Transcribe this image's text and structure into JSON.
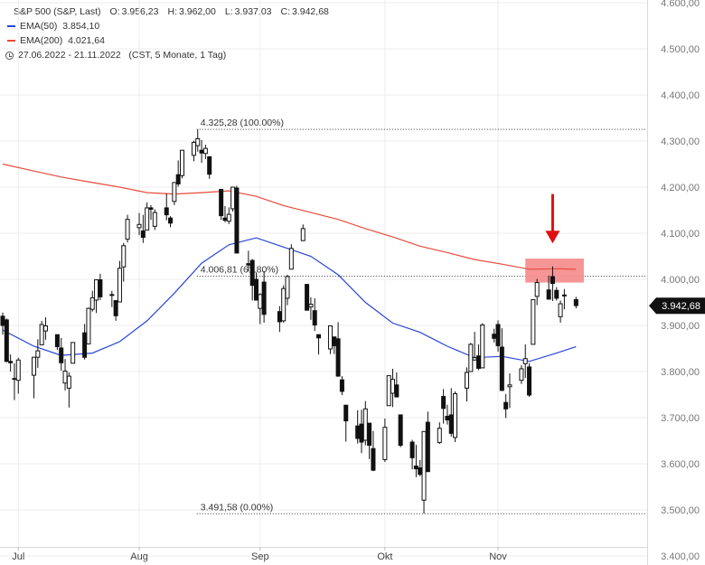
{
  "legend": {
    "instrument": "S&P 500 (S&P, Last)",
    "ohlc": {
      "o_label": "O:",
      "o": "3.956,23",
      "h_label": "H:",
      "h": "3.962,00",
      "l_label": "L:",
      "l": "3.937,03",
      "c_label": "C:",
      "c": "3.942,68"
    },
    "ema50": {
      "label": "EMA(50)",
      "value": "3.854,10",
      "color": "#2846d8"
    },
    "ema200": {
      "label": "EMA(200)",
      "value": "4.021,64",
      "color": "#e84b3c"
    },
    "period": "27.06.2022 - 21.11.2022",
    "period_note": "(CST, 5 Monate, 1 Tag)"
  },
  "chart_data": {
    "type": "candlestick",
    "y_range": [
      3400,
      4600
    ],
    "y_ticks": [
      {
        "value": 3400,
        "label": "3.400,00"
      },
      {
        "value": 3500,
        "label": "3.500,00"
      },
      {
        "value": 3600,
        "label": "3.600,00"
      },
      {
        "value": 3700,
        "label": "3.700,00"
      },
      {
        "value": 3800,
        "label": "3.800,00"
      },
      {
        "value": 3900,
        "label": "3.900,00"
      },
      {
        "value": 4000,
        "label": "4.000,00"
      },
      {
        "value": 4100,
        "label": "4.100,00"
      },
      {
        "value": 4200,
        "label": "4.200,00"
      },
      {
        "value": 4300,
        "label": "4.300,00"
      },
      {
        "value": 4400,
        "label": "4.400,00"
      },
      {
        "value": 4500,
        "label": "4.500,00"
      },
      {
        "value": 4600,
        "label": "4.600,00"
      }
    ],
    "x_range": [
      "2022-06-27",
      "2022-12-09"
    ],
    "x_ticks": [
      {
        "date": "2022-07-01",
        "label": "Jul"
      },
      {
        "date": "2022-08-01",
        "label": "Aug"
      },
      {
        "date": "2022-09-01",
        "label": "Sep"
      },
      {
        "date": "2022-10-03",
        "label": "Okt"
      },
      {
        "date": "2022-11-01",
        "label": "Nov"
      }
    ],
    "last_price": {
      "value": 3942.68,
      "label": "3.942,68"
    },
    "fib_levels": [
      {
        "value": 4325.28,
        "label": "4.325,28 (100.00%)",
        "from": "2022-08-16"
      },
      {
        "value": 4006.81,
        "label": "4.006,81 (61.80%)",
        "from": "2022-08-16"
      },
      {
        "value": 3491.58,
        "label": "3.491,58 (0.00%)",
        "from": "2022-08-16"
      }
    ],
    "highlight_zone": {
      "from": "2022-11-08",
      "to": "2022-11-23",
      "high": 4045,
      "low": 3993,
      "color": "#f48f8f"
    },
    "arrow": {
      "date": "2022-11-15",
      "from_value": 4185,
      "to_value": 4078,
      "color": "#e01010"
    },
    "candles": [
      {
        "date": "2022-06-27",
        "o": 3920,
        "h": 3928,
        "l": 3880,
        "c": 3900
      },
      {
        "date": "2022-06-28",
        "o": 3912,
        "h": 3915,
        "l": 3820,
        "c": 3822
      },
      {
        "date": "2022-06-29",
        "o": 3822,
        "h": 3837,
        "l": 3800,
        "c": 3819
      },
      {
        "date": "2022-06-30",
        "o": 3785,
        "h": 3818,
        "l": 3738,
        "c": 3785
      },
      {
        "date": "2022-07-01",
        "o": 3781,
        "h": 3830,
        "l": 3752,
        "c": 3825
      },
      {
        "date": "2022-07-05",
        "o": 3792,
        "h": 3832,
        "l": 3742,
        "c": 3831
      },
      {
        "date": "2022-07-06",
        "o": 3831,
        "h": 3870,
        "l": 3808,
        "c": 3845
      },
      {
        "date": "2022-07-07",
        "o": 3858,
        "h": 3910,
        "l": 3858,
        "c": 3902
      },
      {
        "date": "2022-07-08",
        "o": 3888,
        "h": 3918,
        "l": 3869,
        "c": 3899
      },
      {
        "date": "2022-07-11",
        "o": 3880,
        "h": 3880,
        "l": 3847,
        "c": 3854
      },
      {
        "date": "2022-07-12",
        "o": 3851,
        "h": 3873,
        "l": 3802,
        "c": 3819
      },
      {
        "date": "2022-07-13",
        "o": 3775,
        "h": 3827,
        "l": 3759,
        "c": 3801
      },
      {
        "date": "2022-07-14",
        "o": 3764,
        "h": 3798,
        "l": 3722,
        "c": 3790
      },
      {
        "date": "2022-07-15",
        "o": 3818,
        "h": 3863,
        "l": 3818,
        "c": 3863
      },
      {
        "date": "2022-07-18",
        "o": 3884,
        "h": 3903,
        "l": 3826,
        "c": 3831
      },
      {
        "date": "2022-07-19",
        "o": 3860,
        "h": 3939,
        "l": 3860,
        "c": 3937
      },
      {
        "date": "2022-07-20",
        "o": 3935,
        "h": 3975,
        "l": 3930,
        "c": 3960
      },
      {
        "date": "2022-07-21",
        "o": 3955,
        "h": 3999,
        "l": 3927,
        "c": 3999
      },
      {
        "date": "2022-07-22",
        "o": 3999,
        "h": 4012,
        "l": 3955,
        "c": 3962
      },
      {
        "date": "2022-07-25",
        "o": 3966,
        "h": 3975,
        "l": 3940,
        "c": 3967
      },
      {
        "date": "2022-07-26",
        "o": 3954,
        "h": 3954,
        "l": 3910,
        "c": 3921
      },
      {
        "date": "2022-07-27",
        "o": 3951,
        "h": 4040,
        "l": 3951,
        "c": 4024
      },
      {
        "date": "2022-07-28",
        "o": 4027,
        "h": 4079,
        "l": 3995,
        "c": 4073
      },
      {
        "date": "2022-07-29",
        "o": 4087,
        "h": 4140,
        "l": 4080,
        "c": 4130
      },
      {
        "date": "2022-08-01",
        "o": 4112,
        "h": 4144,
        "l": 4096,
        "c": 4119
      },
      {
        "date": "2022-08-02",
        "o": 4105,
        "h": 4140,
        "l": 4079,
        "c": 4091
      },
      {
        "date": "2022-08-03",
        "o": 4107,
        "h": 4167,
        "l": 4107,
        "c": 4155
      },
      {
        "date": "2022-08-04",
        "o": 4155,
        "h": 4161,
        "l": 4129,
        "c": 4152
      },
      {
        "date": "2022-08-05",
        "o": 4115,
        "h": 4152,
        "l": 4107,
        "c": 4145
      },
      {
        "date": "2022-08-08",
        "o": 4155,
        "h": 4186,
        "l": 4128,
        "c": 4140
      },
      {
        "date": "2022-08-09",
        "o": 4133,
        "h": 4137,
        "l": 4113,
        "c": 4122
      },
      {
        "date": "2022-08-10",
        "o": 4169,
        "h": 4211,
        "l": 4161,
        "c": 4210
      },
      {
        "date": "2022-08-11",
        "o": 4227,
        "h": 4258,
        "l": 4201,
        "c": 4207
      },
      {
        "date": "2022-08-12",
        "o": 4225,
        "h": 4280,
        "l": 4219,
        "c": 4280
      },
      {
        "date": "2022-08-15",
        "o": 4269,
        "h": 4301,
        "l": 4256,
        "c": 4297
      },
      {
        "date": "2022-08-16",
        "o": 4290,
        "h": 4325,
        "l": 4277,
        "c": 4305
      },
      {
        "date": "2022-08-17",
        "o": 4280,
        "h": 4302,
        "l": 4253,
        "c": 4274
      },
      {
        "date": "2022-08-18",
        "o": 4273,
        "h": 4292,
        "l": 4261,
        "c": 4284
      },
      {
        "date": "2022-08-19",
        "o": 4266,
        "h": 4266,
        "l": 4218,
        "c": 4228
      },
      {
        "date": "2022-08-22",
        "o": 4195,
        "h": 4195,
        "l": 4129,
        "c": 4138
      },
      {
        "date": "2022-08-23",
        "o": 4133,
        "h": 4159,
        "l": 4124,
        "c": 4128
      },
      {
        "date": "2022-08-24",
        "o": 4126,
        "h": 4156,
        "l": 4120,
        "c": 4141
      },
      {
        "date": "2022-08-25",
        "o": 4153,
        "h": 4200,
        "l": 4147,
        "c": 4200
      },
      {
        "date": "2022-08-26",
        "o": 4198,
        "h": 4203,
        "l": 4057,
        "c": 4057
      },
      {
        "date": "2022-08-29",
        "o": 4034,
        "h": 4062,
        "l": 4017,
        "c": 4031
      },
      {
        "date": "2022-08-30",
        "o": 4041,
        "h": 4044,
        "l": 3954,
        "c": 3987
      },
      {
        "date": "2022-08-31",
        "o": 4000,
        "h": 4015,
        "l": 3954,
        "c": 3955
      },
      {
        "date": "2022-09-01",
        "o": 3937,
        "h": 3970,
        "l": 3903,
        "c": 3967
      },
      {
        "date": "2022-09-02",
        "o": 3994,
        "h": 4018,
        "l": 3906,
        "c": 3924
      },
      {
        "date": "2022-09-06",
        "o": 3930,
        "h": 3942,
        "l": 3886,
        "c": 3908
      },
      {
        "date": "2022-09-07",
        "o": 3910,
        "h": 3987,
        "l": 3906,
        "c": 3980
      },
      {
        "date": "2022-09-08",
        "o": 3959,
        "h": 4010,
        "l": 3944,
        "c": 4006
      },
      {
        "date": "2022-09-09",
        "o": 4022,
        "h": 4076,
        "l": 4022,
        "c": 4067
      },
      {
        "date": "2022-09-12",
        "o": 4084,
        "h": 4119,
        "l": 4083,
        "c": 4110
      },
      {
        "date": "2022-09-13",
        "o": 3989,
        "h": 3990,
        "l": 3933,
        "c": 3933
      },
      {
        "date": "2022-09-14",
        "o": 3940,
        "h": 3961,
        "l": 3912,
        "c": 3946
      },
      {
        "date": "2022-09-15",
        "o": 3932,
        "h": 3959,
        "l": 3888,
        "c": 3901
      },
      {
        "date": "2022-09-16",
        "o": 3880,
        "h": 3880,
        "l": 3837,
        "c": 3873
      },
      {
        "date": "2022-09-19",
        "o": 3849,
        "h": 3900,
        "l": 3838,
        "c": 3899
      },
      {
        "date": "2022-09-20",
        "o": 3875,
        "h": 3876,
        "l": 3838,
        "c": 3856
      },
      {
        "date": "2022-09-21",
        "o": 3871,
        "h": 3907,
        "l": 3789,
        "c": 3790
      },
      {
        "date": "2022-09-22",
        "o": 3782,
        "h": 3790,
        "l": 3749,
        "c": 3757
      },
      {
        "date": "2022-09-23",
        "o": 3727,
        "h": 3727,
        "l": 3648,
        "c": 3693
      },
      {
        "date": "2022-09-26",
        "o": 3682,
        "h": 3716,
        "l": 3644,
        "c": 3655
      },
      {
        "date": "2022-09-27",
        "o": 3686,
        "h": 3717,
        "l": 3623,
        "c": 3647
      },
      {
        "date": "2022-09-28",
        "o": 3651,
        "h": 3736,
        "l": 3640,
        "c": 3719
      },
      {
        "date": "2022-09-29",
        "o": 3688,
        "h": 3688,
        "l": 3610,
        "c": 3640
      },
      {
        "date": "2022-09-30",
        "o": 3633,
        "h": 3671,
        "l": 3584,
        "c": 3586
      },
      {
        "date": "2022-10-03",
        "o": 3609,
        "h": 3698,
        "l": 3604,
        "c": 3679
      },
      {
        "date": "2022-10-04",
        "o": 3726,
        "h": 3791,
        "l": 3726,
        "c": 3791
      },
      {
        "date": "2022-10-05",
        "o": 3753,
        "h": 3806,
        "l": 3723,
        "c": 3783
      },
      {
        "date": "2022-10-06",
        "o": 3771,
        "h": 3798,
        "l": 3744,
        "c": 3745
      },
      {
        "date": "2022-10-07",
        "o": 3706,
        "h": 3706,
        "l": 3636,
        "c": 3640
      },
      {
        "date": "2022-10-10",
        "o": 3647,
        "h": 3652,
        "l": 3588,
        "c": 3613
      },
      {
        "date": "2022-10-11",
        "o": 3595,
        "h": 3641,
        "l": 3571,
        "c": 3589
      },
      {
        "date": "2022-10-12",
        "o": 3591,
        "h": 3608,
        "l": 3573,
        "c": 3577
      },
      {
        "date": "2022-10-13",
        "o": 3521,
        "h": 3670,
        "l": 3492,
        "c": 3670
      },
      {
        "date": "2022-10-14",
        "o": 3690,
        "h": 3713,
        "l": 3582,
        "c": 3583
      },
      {
        "date": "2022-10-17",
        "o": 3646,
        "h": 3690,
        "l": 3643,
        "c": 3677
      },
      {
        "date": "2022-10-18",
        "o": 3746,
        "h": 3762,
        "l": 3687,
        "c": 3720
      },
      {
        "date": "2022-10-19",
        "o": 3703,
        "h": 3728,
        "l": 3685,
        "c": 3695
      },
      {
        "date": "2022-10-20",
        "o": 3706,
        "h": 3764,
        "l": 3659,
        "c": 3666
      },
      {
        "date": "2022-10-21",
        "o": 3657,
        "h": 3757,
        "l": 3647,
        "c": 3752
      },
      {
        "date": "2022-10-24",
        "o": 3764,
        "h": 3809,
        "l": 3735,
        "c": 3798
      },
      {
        "date": "2022-10-25",
        "o": 3800,
        "h": 3862,
        "l": 3800,
        "c": 3859
      },
      {
        "date": "2022-10-26",
        "o": 3825,
        "h": 3886,
        "l": 3824,
        "c": 3830
      },
      {
        "date": "2022-10-27",
        "o": 3834,
        "h": 3859,
        "l": 3803,
        "c": 3807
      },
      {
        "date": "2022-10-28",
        "o": 3808,
        "h": 3905,
        "l": 3808,
        "c": 3901
      },
      {
        "date": "2022-10-31",
        "o": 3881,
        "h": 3893,
        "l": 3863,
        "c": 3872
      },
      {
        "date": "2022-11-01",
        "o": 3902,
        "h": 3911,
        "l": 3843,
        "c": 3856
      },
      {
        "date": "2022-11-02",
        "o": 3853,
        "h": 3894,
        "l": 3758,
        "c": 3759
      },
      {
        "date": "2022-11-03",
        "o": 3733,
        "h": 3751,
        "l": 3699,
        "c": 3719
      },
      {
        "date": "2022-11-04",
        "o": 3767,
        "h": 3796,
        "l": 3721,
        "c": 3771
      },
      {
        "date": "2022-11-07",
        "o": 3781,
        "h": 3814,
        "l": 3773,
        "c": 3806
      },
      {
        "date": "2022-11-08",
        "o": 3817,
        "h": 3859,
        "l": 3786,
        "c": 3828
      },
      {
        "date": "2022-11-09",
        "o": 3810,
        "h": 3818,
        "l": 3745,
        "c": 3749
      },
      {
        "date": "2022-11-10",
        "o": 3859,
        "h": 3957,
        "l": 3859,
        "c": 3956
      },
      {
        "date": "2022-11-11",
        "o": 3963,
        "h": 4001,
        "l": 3944,
        "c": 3993
      },
      {
        "date": "2022-11-14",
        "o": 3977,
        "h": 4008,
        "l": 3956,
        "c": 3957
      },
      {
        "date": "2022-11-15",
        "o": 4006,
        "h": 4028,
        "l": 3953,
        "c": 3991
      },
      {
        "date": "2022-11-16",
        "o": 3976,
        "h": 3983,
        "l": 3954,
        "c": 3959
      },
      {
        "date": "2022-11-17",
        "o": 3919,
        "h": 3954,
        "l": 3906,
        "c": 3947
      },
      {
        "date": "2022-11-18",
        "o": 3966,
        "h": 3979,
        "l": 3935,
        "c": 3965
      },
      {
        "date": "2022-11-21",
        "o": 3956,
        "h": 3962,
        "l": 3937,
        "c": 3943
      }
    ],
    "ema50": [
      {
        "date": "2022-06-27",
        "v": 3890
      },
      {
        "date": "2022-07-05",
        "v": 3855
      },
      {
        "date": "2022-07-12",
        "v": 3835
      },
      {
        "date": "2022-07-20",
        "v": 3840
      },
      {
        "date": "2022-07-27",
        "v": 3865
      },
      {
        "date": "2022-08-03",
        "v": 3910
      },
      {
        "date": "2022-08-10",
        "v": 3970
      },
      {
        "date": "2022-08-17",
        "v": 4035
      },
      {
        "date": "2022-08-24",
        "v": 4075
      },
      {
        "date": "2022-08-31",
        "v": 4090
      },
      {
        "date": "2022-09-07",
        "v": 4070
      },
      {
        "date": "2022-09-14",
        "v": 4050
      },
      {
        "date": "2022-09-21",
        "v": 4010
      },
      {
        "date": "2022-09-28",
        "v": 3950
      },
      {
        "date": "2022-10-05",
        "v": 3905
      },
      {
        "date": "2022-10-12",
        "v": 3885
      },
      {
        "date": "2022-10-19",
        "v": 3855
      },
      {
        "date": "2022-10-26",
        "v": 3830
      },
      {
        "date": "2022-11-02",
        "v": 3833
      },
      {
        "date": "2022-11-09",
        "v": 3822
      },
      {
        "date": "2022-11-16",
        "v": 3840
      },
      {
        "date": "2022-11-21",
        "v": 3854
      }
    ],
    "ema200": [
      {
        "date": "2022-06-27",
        "v": 4250
      },
      {
        "date": "2022-07-05",
        "v": 4235
      },
      {
        "date": "2022-07-12",
        "v": 4222
      },
      {
        "date": "2022-07-20",
        "v": 4210
      },
      {
        "date": "2022-07-27",
        "v": 4200
      },
      {
        "date": "2022-08-03",
        "v": 4188
      },
      {
        "date": "2022-08-10",
        "v": 4185
      },
      {
        "date": "2022-08-17",
        "v": 4188
      },
      {
        "date": "2022-08-24",
        "v": 4192
      },
      {
        "date": "2022-08-31",
        "v": 4180
      },
      {
        "date": "2022-09-07",
        "v": 4160
      },
      {
        "date": "2022-09-14",
        "v": 4145
      },
      {
        "date": "2022-09-21",
        "v": 4130
      },
      {
        "date": "2022-09-28",
        "v": 4110
      },
      {
        "date": "2022-10-05",
        "v": 4092
      },
      {
        "date": "2022-10-12",
        "v": 4072
      },
      {
        "date": "2022-10-19",
        "v": 4058
      },
      {
        "date": "2022-10-26",
        "v": 4043
      },
      {
        "date": "2022-11-02",
        "v": 4033
      },
      {
        "date": "2022-11-09",
        "v": 4022
      },
      {
        "date": "2022-11-16",
        "v": 4023
      },
      {
        "date": "2022-11-21",
        "v": 4022
      }
    ]
  }
}
